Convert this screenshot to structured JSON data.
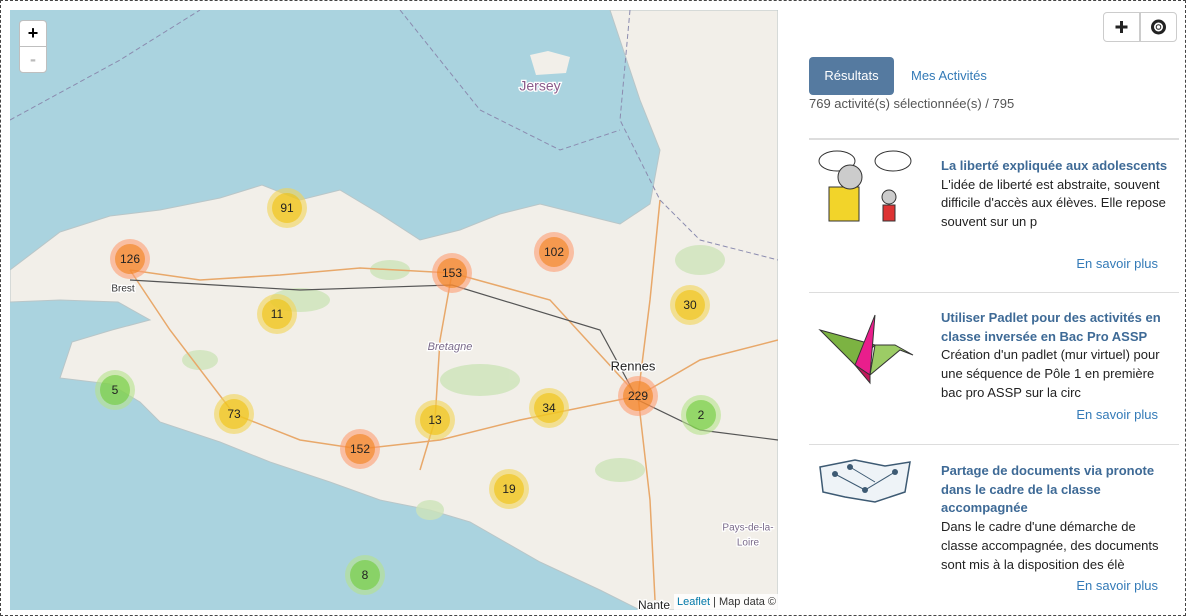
{
  "map": {
    "zoom_in": "+",
    "zoom_out": "-",
    "places": [
      "Jersey",
      "Brest",
      "Bretagne",
      "Rennes",
      "Pays-de-la-",
      "Loire",
      "Nante"
    ],
    "clusters": [
      91,
      126,
      153,
      102,
      30,
      11,
      5,
      73,
      13,
      34,
      229,
      2,
      152,
      19,
      8
    ],
    "attribution_link": "Leaflet",
    "attribution_text": "| Map data ©"
  },
  "tabs": [
    "Résultats",
    "Mes Activités"
  ],
  "summary": "769 activité(s) sélectionnée(s) / 795",
  "results": [
    {
      "title": "La liberté expliquée aux adolescents",
      "description": "L'idée de liberté est abstraite, souvent difficile d'accès aux élèves. Elle repose souvent sur un p",
      "link": "En savoir plus"
    },
    {
      "title": "Utiliser Padlet pour des activités en classe inversée en Bac Pro ASSP",
      "description": "Création d'un padlet (mur virtuel) pour une séquence de Pôle 1 en première bac pro ASSP sur la circ",
      "link": "En savoir plus"
    },
    {
      "title": "Partage de documents via pronote dans le cadre de la classe accompagnée",
      "description": "Dans le cadre d'une démarche de classe accompagnée, des documents sont mis à la disposition des élè",
      "link": "En savoir plus"
    }
  ]
}
